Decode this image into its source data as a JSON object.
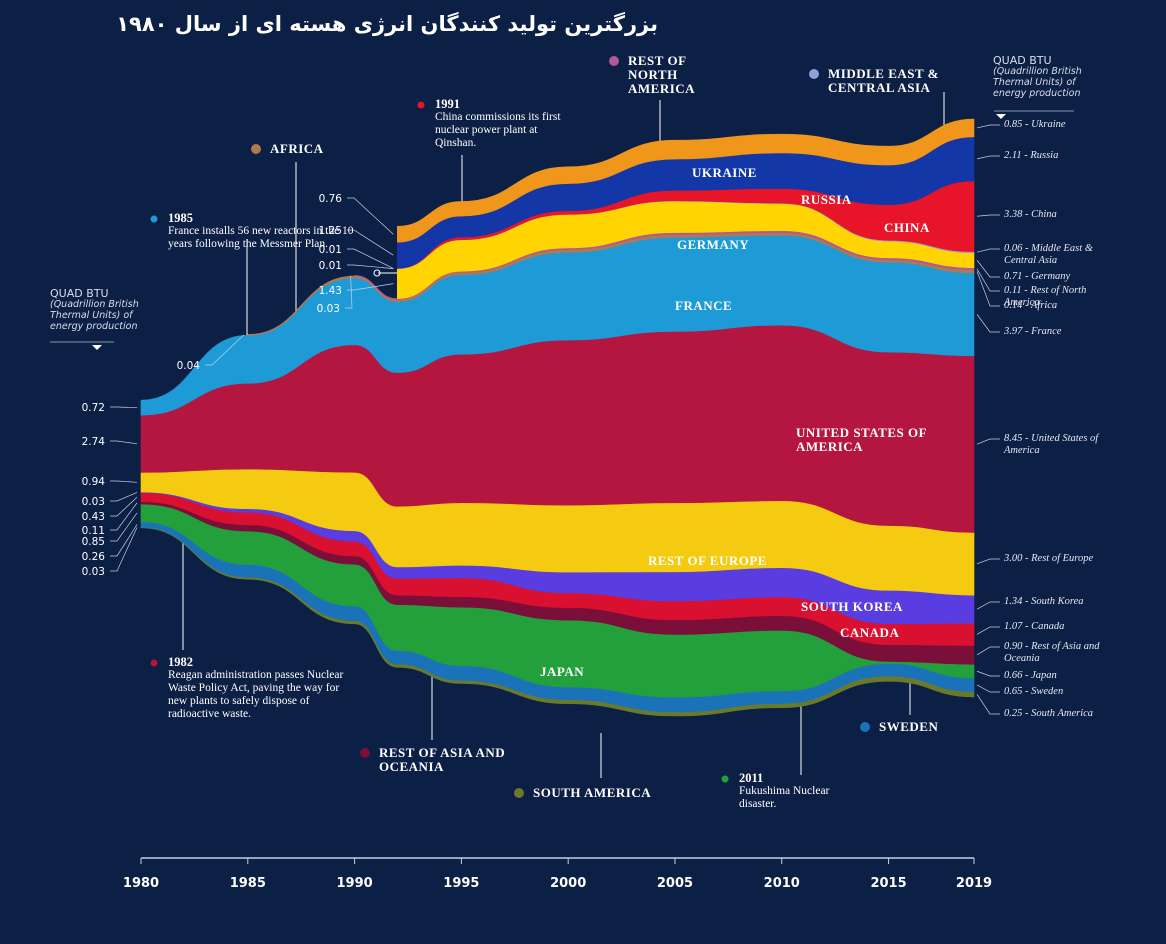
{
  "chart_data": {
    "type": "stream",
    "title": "بزرگترین تولید کنندگان انرژی هسته ای از سال ۱۹۸۰",
    "unit_title": "QUAD BTU",
    "unit_note": "(Quadrillion British Thermal Units) of energy production",
    "x": [
      1980,
      1985,
      1990,
      1992,
      1995,
      2000,
      2005,
      2010,
      2015,
      2019
    ],
    "xlim": [
      1980,
      2019
    ],
    "xticks": [
      1980,
      1985,
      1990,
      1995,
      2000,
      2005,
      2010,
      2015,
      2019
    ],
    "series": [
      {
        "name": "SOUTH AMERICA",
        "color": "#6b7a2a",
        "end_label": "0.25 - South America",
        "values": [
          0.03,
          0.1,
          0.15,
          0.15,
          0.15,
          0.2,
          0.2,
          0.2,
          0.25,
          0.25
        ]
      },
      {
        "name": "SWEDEN",
        "color": "#1a73b8",
        "end_label": "0.65 - Sweden",
        "values": [
          0.26,
          0.6,
          0.7,
          0.65,
          0.7,
          0.6,
          0.7,
          0.6,
          0.6,
          0.65
        ]
      },
      {
        "name": "JAPAN",
        "color": "#23a03c",
        "end_label": "0.66 - Japan",
        "values": [
          0.85,
          1.6,
          2.0,
          2.2,
          2.8,
          3.2,
          3.0,
          2.9,
          0.1,
          0.66
        ]
      },
      {
        "name": "REST OF ASIA AND OCEANIA",
        "color": "#7a0f3a",
        "end_label": "0.90 - Rest of Asia and Oceania",
        "values": [
          0.11,
          0.3,
          0.4,
          0.45,
          0.5,
          0.6,
          0.7,
          0.7,
          0.8,
          0.9
        ]
      },
      {
        "name": "CANADA",
        "color": "#d9102f",
        "end_label": "1.07 - Canada",
        "values": [
          0.43,
          0.6,
          0.7,
          0.8,
          0.9,
          0.7,
          0.9,
          0.9,
          1.0,
          1.07
        ]
      },
      {
        "name": "SOUTH KOREA",
        "color": "#5a3de0",
        "end_label": "1.34 - South Korea",
        "values": [
          0.03,
          0.17,
          0.5,
          0.55,
          0.6,
          1.0,
          1.4,
          1.4,
          1.6,
          1.34
        ]
      },
      {
        "name": "REST OF EUROPE",
        "color": "#f5cb12",
        "end_label": "3.00 - Rest of Europe",
        "values": [
          0.94,
          1.9,
          2.8,
          2.9,
          3.0,
          3.2,
          3.3,
          3.2,
          3.1,
          3.0
        ]
      },
      {
        "name": "UNITED STATES OF AMERICA",
        "color": "#b5163f",
        "end_label": "8.45 - United States of America",
        "values": [
          2.74,
          4.1,
          6.1,
          6.4,
          7.1,
          7.9,
          8.2,
          8.4,
          8.3,
          8.45
        ]
      },
      {
        "name": "FRANCE",
        "color": "#1e9ad6",
        "end_label": "3.97 - France",
        "values": [
          0.72,
          2.3,
          3.2,
          3.4,
          3.8,
          4.2,
          4.5,
          4.3,
          4.3,
          3.97
        ]
      },
      {
        "name": "AFRICA",
        "color": "#b07a50",
        "end_label": "0.14 - Africa",
        "values": [
          null,
          0.04,
          0.09,
          0.1,
          0.12,
          0.13,
          0.13,
          0.12,
          0.11,
          0.14
        ]
      },
      {
        "name": "REST OF NORTH AMERICA",
        "color": "#b05a98",
        "end_label": "0.11 - Rest of North America",
        "values": [
          null,
          null,
          0.03,
          0.04,
          0.05,
          0.08,
          0.1,
          0.1,
          0.1,
          0.11
        ]
      },
      {
        "name": "GERMANY",
        "color": "#ffd400",
        "end_label": "0.71 - Germany",
        "values": [
          null,
          null,
          null,
          1.43,
          1.5,
          1.6,
          1.5,
          1.3,
          0.8,
          0.71
        ]
      },
      {
        "name": "MIDDLE EAST & CENTRAL ASIA",
        "color": "#8fa0d8",
        "end_label": "0.06 - Middle East & Central Asia",
        "values": [
          null,
          null,
          null,
          0.01,
          0.01,
          0.01,
          0.02,
          0.02,
          0.04,
          0.06
        ]
      },
      {
        "name": "CHINA",
        "color": "#e8142a",
        "end_label": "3.38 - China",
        "values": [
          null,
          null,
          null,
          0.01,
          0.13,
          0.17,
          0.5,
          0.7,
          1.7,
          3.38
        ]
      },
      {
        "name": "RUSSIA",
        "color": "#1437a8",
        "end_label": "2.11 - Russia",
        "values": [
          null,
          null,
          null,
          1.25,
          1.0,
          1.3,
          1.5,
          1.7,
          1.9,
          2.11
        ]
      },
      {
        "name": "UKRAINE",
        "color": "#f0961a",
        "end_label": "0.85 - Ukraine",
        "values": [
          null,
          null,
          null,
          0.76,
          0.7,
          0.8,
          0.9,
          0.9,
          0.9,
          0.85
        ]
      }
    ],
    "annotations": [
      {
        "year": "1982",
        "text": "Reagan administration passes Nuclear Waste Policy Act, paving the way for new plants to safely dispose of radioactive waste."
      },
      {
        "year": "1985",
        "text": "France installs 56 new reactors in the 10 years following the Messmer Plan."
      },
      {
        "year": "1991",
        "text": "China commissions its first nuclear power plant at Qinshan."
      },
      {
        "year": "2011",
        "text": "Fukushima Nuclear disaster."
      }
    ]
  }
}
